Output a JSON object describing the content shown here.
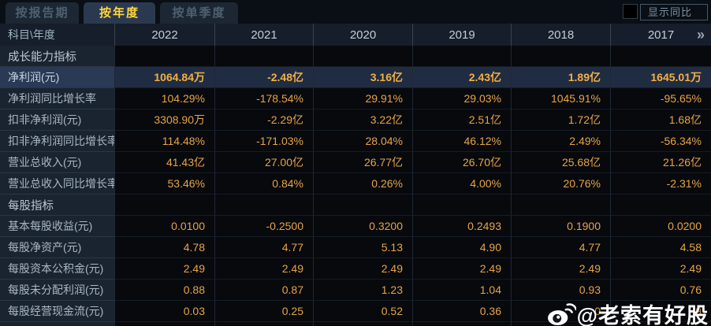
{
  "tabs": [
    {
      "label": "按报告期",
      "active": false
    },
    {
      "label": "按年度",
      "active": true
    },
    {
      "label": "按单季度",
      "active": false
    }
  ],
  "controls": {
    "show_yoy_label": "显示同比",
    "checkbox_checked": false
  },
  "table": {
    "corner_label": "科目\\年度",
    "years": [
      "2022",
      "2021",
      "2020",
      "2019",
      "2018",
      "2017"
    ],
    "more_icon": "»",
    "rows": [
      {
        "type": "section",
        "label": "成长能力指标",
        "values": [
          "",
          "",
          "",
          "",
          "",
          ""
        ]
      },
      {
        "type": "highlight",
        "label": "净利润(元)",
        "values": [
          "1064.84万",
          "-2.48亿",
          "3.16亿",
          "2.43亿",
          "1.89亿",
          "1645.01万"
        ]
      },
      {
        "type": "data",
        "label": "净利润同比增长率",
        "values": [
          "104.29%",
          "-178.54%",
          "29.91%",
          "29.03%",
          "1045.91%",
          "-95.65%"
        ]
      },
      {
        "type": "data",
        "label": "扣非净利润(元)",
        "values": [
          "3308.90万",
          "-2.29亿",
          "3.22亿",
          "2.51亿",
          "1.72亿",
          "1.68亿"
        ]
      },
      {
        "type": "data",
        "label": "扣非净利润同比增长率",
        "values": [
          "114.48%",
          "-171.03%",
          "28.04%",
          "46.12%",
          "2.49%",
          "-56.34%"
        ]
      },
      {
        "type": "data",
        "label": "营业总收入(元)",
        "values": [
          "41.43亿",
          "27.00亿",
          "26.77亿",
          "26.70亿",
          "25.68亿",
          "21.26亿"
        ]
      },
      {
        "type": "data",
        "label": "营业总收入同比增长率",
        "values": [
          "53.46%",
          "0.84%",
          "0.26%",
          "4.00%",
          "20.76%",
          "-2.31%"
        ]
      },
      {
        "type": "section",
        "label": "每股指标",
        "values": [
          "",
          "",
          "",
          "",
          "",
          ""
        ]
      },
      {
        "type": "data",
        "label": "基本每股收益(元)",
        "values": [
          "0.0100",
          "-0.2500",
          "0.3200",
          "0.2493",
          "0.1900",
          "0.0200"
        ]
      },
      {
        "type": "data",
        "label": "每股净资产(元)",
        "values": [
          "4.78",
          "4.77",
          "5.13",
          "4.90",
          "4.77",
          "4.58"
        ]
      },
      {
        "type": "data",
        "label": "每股资本公积金(元)",
        "values": [
          "2.49",
          "2.49",
          "2.49",
          "2.49",
          "2.49",
          "2.49"
        ]
      },
      {
        "type": "data",
        "label": "每股未分配利润(元)",
        "values": [
          "0.88",
          "0.87",
          "1.23",
          "1.04",
          "0.93",
          "0.76"
        ]
      },
      {
        "type": "data",
        "label": "每股经营现金流(元)",
        "values": [
          "0.03",
          "0.25",
          "0.52",
          "0.36",
          "0",
          "9"
        ]
      }
    ]
  },
  "watermark": {
    "text": "@老索有好股",
    "icon": "weibo-icon"
  },
  "colors": {
    "page-bg": "#060a10",
    "tabbar-bg": "#0a0f16",
    "tab-bg": "#1d2734",
    "tab-text": "#4e6070",
    "tab-active-bg": "#2b3950",
    "tab-active-text": "#ffd83d",
    "header-bg": "#151e2a",
    "header-text": "#c3cdd7",
    "labelcol-bg": "#1a2430",
    "label-text": "#a9b6c3",
    "cell-bg": "#07090d",
    "value-orange": "#e7a446",
    "highlight-label-bg": "#2a3a55",
    "highlight-cell-bg": "#202c41",
    "highlight-value": "#f3b043",
    "divider": "#202834",
    "label-divider": "#2b3644",
    "yoy-border": "#45586a",
    "yoy-text": "#7d90a0",
    "watermark": "#ffffff"
  }
}
